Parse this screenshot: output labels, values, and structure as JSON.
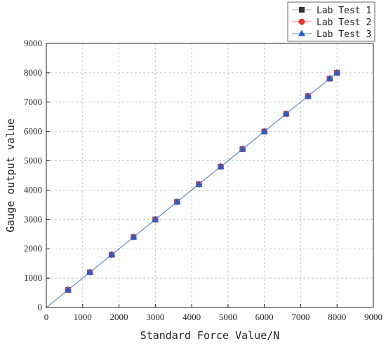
{
  "chart_data": {
    "type": "scatter",
    "title": "",
    "xlabel": "Standard Force Value/N",
    "ylabel": "Gauge output value",
    "xlim": [
      0,
      9000
    ],
    "ylim": [
      0,
      9000
    ],
    "x_ticks": [
      "0",
      "1000",
      "2000",
      "3000",
      "4000",
      "5000",
      "6000",
      "7000",
      "8000",
      "9000"
    ],
    "y_ticks": [
      "0",
      "1000",
      "2000",
      "3000",
      "4000",
      "5000",
      "6000",
      "7000",
      "8000",
      "9000"
    ],
    "grid": true,
    "legend_position": "top-right",
    "x": [
      0,
      600,
      1200,
      1800,
      2400,
      3000,
      3600,
      4200,
      4800,
      5400,
      6000,
      6600,
      7200,
      7800,
      8000
    ],
    "series": [
      {
        "name": "Lab Test 1",
        "marker": "square",
        "color": "#333333",
        "line_color": "#aaaaaa",
        "values": [
          0,
          600,
          1200,
          1800,
          2400,
          3000,
          3600,
          4200,
          4800,
          5400,
          6000,
          6600,
          7200,
          7800,
          8000
        ]
      },
      {
        "name": "Lab Test 2",
        "marker": "circle",
        "color": "#ee3333",
        "line_color": "#f08080",
        "values": [
          0,
          600,
          1200,
          1800,
          2400,
          3000,
          3600,
          4200,
          4800,
          5400,
          6000,
          6600,
          7200,
          7800,
          8000
        ]
      },
      {
        "name": "Lab Test 3",
        "marker": "triangle",
        "color": "#1f5fd6",
        "line_color": "#4a90d9",
        "values": [
          0,
          600,
          1200,
          1800,
          2400,
          3000,
          3600,
          4200,
          4800,
          5400,
          6000,
          6600,
          7200,
          7800,
          8000
        ]
      }
    ]
  }
}
